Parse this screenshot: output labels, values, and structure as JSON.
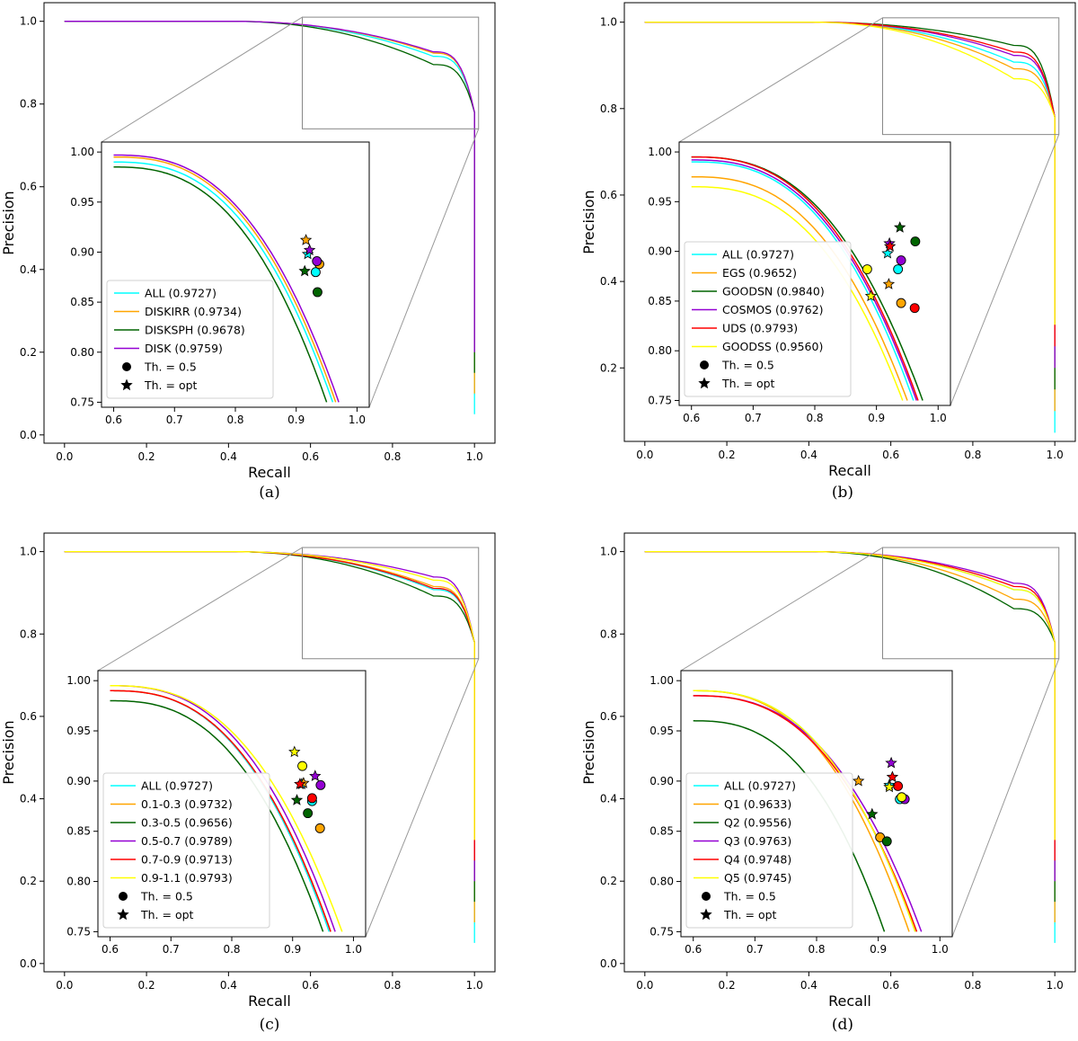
{
  "chart_data": [
    {
      "type": "line",
      "panel": "a",
      "caption": "(a)",
      "xlabel": "Recall",
      "ylabel": "Precision",
      "xlim": [
        -0.05,
        1.05
      ],
      "ylim": [
        -0.02,
        1.045
      ],
      "xticks": [
        "0.0",
        "0.2",
        "0.4",
        "0.6",
        "0.8",
        "1.0"
      ],
      "yticks": [
        "0.0",
        "0.2",
        "0.4",
        "0.6",
        "0.8",
        "1.0"
      ],
      "inset": {
        "xlim": [
          0.58,
          1.02
        ],
        "ylim": [
          0.745,
          1.01
        ],
        "xticks": [
          "0.6",
          "0.7",
          "0.8",
          "0.9",
          "1.0"
        ],
        "yticks": [
          "0.75",
          "0.80",
          "0.85",
          "0.90",
          "0.95",
          "1.00"
        ],
        "zoom_box": {
          "x": [
            0.58,
            1.01
          ],
          "y": [
            0.74,
            1.01
          ]
        }
      },
      "legend": {
        "placement": "lower-left of inset",
        "marker_labels": [
          "Th. = 0.5",
          "Th. = opt"
        ]
      },
      "series": [
        {
          "name": "ALL (0.9727)",
          "color": "#00ffff",
          "inset_curve": [
            0.99,
            0.9
          ],
          "th05": [
            0.932,
            0.88
          ],
          "opt": [
            0.919,
            0.898
          ],
          "main_knee": 0.55
        },
        {
          "name": "DISKIRR (0.9734)",
          "color": "#ffa500",
          "inset_curve": [
            0.995,
            0.92
          ],
          "th05": [
            0.938,
            0.888
          ],
          "opt": [
            0.916,
            0.912
          ],
          "main_knee": 0.5
        },
        {
          "name": "DISKSPH (0.9678)",
          "color": "#006400",
          "inset_curve": [
            0.985,
            0.86
          ],
          "th05": [
            0.935,
            0.86
          ],
          "opt": [
            0.914,
            0.881
          ],
          "main_knee": 0.68
        },
        {
          "name": "DISK (0.9759)",
          "color": "#9400d3",
          "inset_curve": [
            0.997,
            0.94
          ],
          "th05": [
            0.934,
            0.891
          ],
          "opt": [
            0.922,
            0.902
          ],
          "main_knee": 0.48
        }
      ]
    },
    {
      "type": "line",
      "panel": "b",
      "caption": "(b)",
      "xlabel": "Recall",
      "ylabel": "Precision",
      "xlim": [
        -0.05,
        1.05
      ],
      "ylim": [
        0.03,
        1.045
      ],
      "xticks": [
        "0.0",
        "0.2",
        "0.4",
        "0.6",
        "0.8",
        "1.0"
      ],
      "yticks": [
        "0.2",
        "0.4",
        "0.6",
        "0.8",
        "1.0"
      ],
      "inset": {
        "xlim": [
          0.58,
          1.02
        ],
        "ylim": [
          0.745,
          1.01
        ],
        "xticks": [
          "0.6",
          "0.7",
          "0.8",
          "0.9",
          "1.0"
        ],
        "yticks": [
          "0.75",
          "0.80",
          "0.85",
          "0.90",
          "0.95",
          "1.00"
        ],
        "zoom_box": {
          "x": [
            0.58,
            1.01
          ],
          "y": [
            0.74,
            1.01
          ]
        }
      },
      "legend": {
        "placement": "lower-left of inset",
        "marker_labels": [
          "Th. = 0.5",
          "Th. = opt"
        ]
      },
      "series": [
        {
          "name": "ALL (0.9727)",
          "color": "#00ffff",
          "inset_curve": [
            0.99,
            0.9
          ],
          "th05": [
            0.935,
            0.882
          ],
          "opt": [
            0.918,
            0.898
          ],
          "main_knee": 0.6
        },
        {
          "name": "EGS (0.9652)",
          "color": "#ffa500",
          "inset_curve": [
            0.975,
            0.86
          ],
          "th05": [
            0.94,
            0.848
          ],
          "opt": [
            0.92,
            0.867
          ],
          "main_knee": 0.7
        },
        {
          "name": "GOODSN (0.9840)",
          "color": "#006400",
          "inset_curve": [
            0.995,
            0.96
          ],
          "th05": [
            0.963,
            0.91
          ],
          "opt": [
            0.938,
            0.924
          ],
          "main_knee": 0.35
        },
        {
          "name": "COSMOS (0.9762)",
          "color": "#9400d3",
          "inset_curve": [
            0.992,
            0.92
          ],
          "th05": [
            0.94,
            0.891
          ],
          "opt": [
            0.921,
            0.908
          ],
          "main_knee": 0.5
        },
        {
          "name": "UDS (0.9793)",
          "color": "#ff0000",
          "inset_curve": [
            0.995,
            0.93
          ],
          "th05": [
            0.962,
            0.843
          ],
          "opt": [
            0.922,
            0.905
          ],
          "main_knee": 0.45
        },
        {
          "name": "GOODSS (0.9560)",
          "color": "#ffff00",
          "inset_curve": [
            0.965,
            0.83
          ],
          "th05": [
            0.885,
            0.882
          ],
          "opt": [
            0.891,
            0.855
          ],
          "main_knee": 0.85
        }
      ]
    },
    {
      "type": "line",
      "panel": "c",
      "caption": "(c)",
      "xlabel": "Recall",
      "ylabel": "Precision",
      "xlim": [
        -0.05,
        1.05
      ],
      "ylim": [
        -0.02,
        1.045
      ],
      "xticks": [
        "0.0",
        "0.2",
        "0.4",
        "0.6",
        "0.8",
        "1.0"
      ],
      "yticks": [
        "0.0",
        "0.2",
        "0.4",
        "0.6",
        "0.8",
        "1.0"
      ],
      "inset": {
        "xlim": [
          0.58,
          1.02
        ],
        "ylim": [
          0.745,
          1.01
        ],
        "xticks": [
          "0.6",
          "0.7",
          "0.8",
          "0.9",
          "1.0"
        ],
        "yticks": [
          "0.75",
          "0.80",
          "0.85",
          "0.90",
          "0.95",
          "1.00"
        ],
        "zoom_box": {
          "x": [
            0.58,
            1.01
          ],
          "y": [
            0.74,
            1.01
          ]
        }
      },
      "legend": {
        "placement": "lower-left of inset",
        "marker_labels": [
          "Th. = 0.5",
          "Th. = opt"
        ]
      },
      "series": [
        {
          "name": "ALL (0.9727)",
          "color": "#00ffff",
          "inset_curve": [
            0.99,
            0.9
          ],
          "th05": [
            0.932,
            0.88
          ],
          "opt": [
            0.915,
            0.897
          ],
          "main_knee": 0.6
        },
        {
          "name": "0.1-0.3 (0.9732)",
          "color": "#ffa500",
          "inset_curve": [
            0.99,
            0.91
          ],
          "th05": [
            0.945,
            0.853
          ],
          "opt": [
            0.918,
            0.898
          ],
          "main_knee": 0.55
        },
        {
          "name": "0.3-0.5 (0.9656)",
          "color": "#006400",
          "inset_curve": [
            0.98,
            0.86
          ],
          "th05": [
            0.925,
            0.868
          ],
          "opt": [
            0.907,
            0.881
          ],
          "main_knee": 0.7
        },
        {
          "name": "0.5-0.7 (0.9789)",
          "color": "#9400d3",
          "inset_curve": [
            0.995,
            0.94
          ],
          "th05": [
            0.946,
            0.896
          ],
          "opt": [
            0.937,
            0.905
          ],
          "main_knee": 0.4
        },
        {
          "name": "0.7-0.9 (0.9713)",
          "color": "#ff0000",
          "inset_curve": [
            0.99,
            0.91
          ],
          "th05": [
            0.932,
            0.883
          ],
          "opt": [
            0.912,
            0.897
          ],
          "main_knee": 0.58
        },
        {
          "name": "0.9-1.1 (0.9793)",
          "color": "#ffff00",
          "inset_curve": [
            0.995,
            0.985
          ],
          "th05": [
            0.916,
            0.915
          ],
          "opt": [
            0.903,
            0.929
          ],
          "main_knee": 0.45
        }
      ]
    },
    {
      "type": "line",
      "panel": "d",
      "caption": "(d)",
      "xlabel": "Recall",
      "ylabel": "Precision",
      "xlim": [
        -0.05,
        1.05
      ],
      "ylim": [
        -0.02,
        1.045
      ],
      "xticks": [
        "0.0",
        "0.2",
        "0.4",
        "0.6",
        "0.8",
        "1.0"
      ],
      "yticks": [
        "0.0",
        "0.2",
        "0.4",
        "0.6",
        "0.8",
        "1.0"
      ],
      "inset": {
        "xlim": [
          0.58,
          1.02
        ],
        "ylim": [
          0.745,
          1.01
        ],
        "xticks": [
          "0.6",
          "0.7",
          "0.8",
          "0.9",
          "1.0"
        ],
        "yticks": [
          "0.75",
          "0.80",
          "0.85",
          "0.90",
          "0.95",
          "1.00"
        ],
        "zoom_box": {
          "x": [
            0.58,
            1.01
          ],
          "y": [
            0.74,
            1.01
          ]
        }
      },
      "legend": {
        "placement": "lower-left of inset",
        "marker_labels": [
          "Th. = 0.5",
          "Th. = opt"
        ]
      },
      "series": [
        {
          "name": "ALL (0.9727)",
          "color": "#00ffff",
          "inset_curve": [
            0.99,
            0.9
          ],
          "th05": [
            0.935,
            0.882
          ],
          "opt": [
            0.918,
            0.896
          ],
          "main_knee": 0.6
        },
        {
          "name": "Q1 (0.9633)",
          "color": "#ffa500",
          "inset_curve": [
            0.99,
            0.86
          ],
          "th05": [
            0.903,
            0.844
          ],
          "opt": [
            0.868,
            0.9
          ],
          "main_knee": 0.75
        },
        {
          "name": "Q2 (0.9556)",
          "color": "#006400",
          "inset_curve": [
            0.96,
            0.7
          ],
          "th05": [
            0.914,
            0.84
          ],
          "opt": [
            0.89,
            0.867
          ],
          "main_knee": 0.9
        },
        {
          "name": "Q3 (0.9763)",
          "color": "#9400d3",
          "inset_curve": [
            0.985,
            0.94
          ],
          "th05": [
            0.943,
            0.882
          ],
          "opt": [
            0.921,
            0.918
          ],
          "main_knee": 0.5
        },
        {
          "name": "Q4 (0.9748)",
          "color": "#ff0000",
          "inset_curve": [
            0.985,
            0.91
          ],
          "th05": [
            0.932,
            0.895
          ],
          "opt": [
            0.923,
            0.904
          ],
          "main_knee": 0.55
        },
        {
          "name": "Q5 (0.9745)",
          "color": "#ffff00",
          "inset_curve": [
            0.99,
            0.9
          ],
          "th05": [
            0.938,
            0.884
          ],
          "opt": [
            0.918,
            0.894
          ],
          "main_knee": 0.6
        }
      ]
    }
  ]
}
